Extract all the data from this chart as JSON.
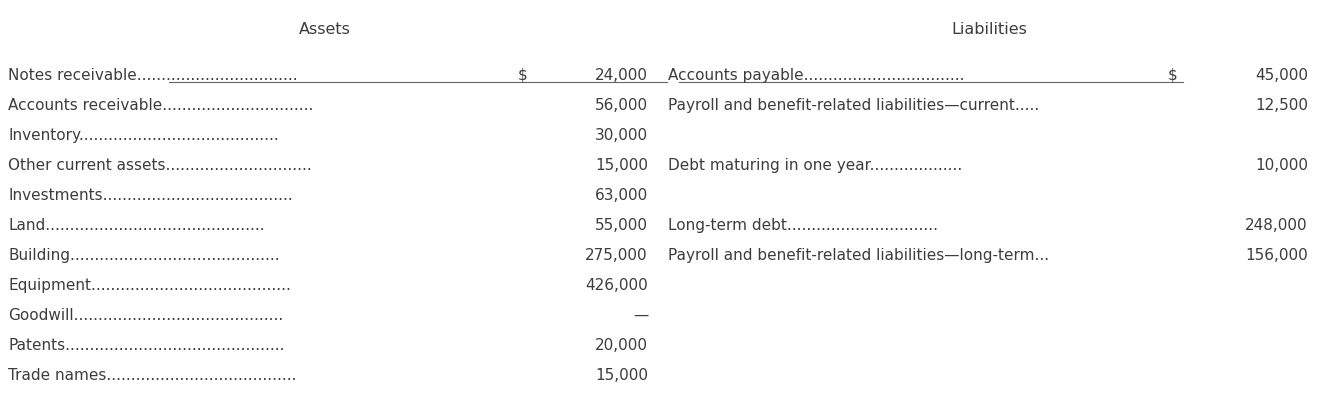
{
  "bg_color": "#ffffff",
  "text_color": "#3d3d3d",
  "assets_header": "Assets",
  "liabilities_header": "Liabilities",
  "assets_rows": [
    {
      "label": "Notes receivable",
      "dots": ".................................",
      "value": "24,000",
      "dollar": true
    },
    {
      "label": "Accounts receivable",
      "dots": "...............................",
      "value": "56,000",
      "dollar": false
    },
    {
      "label": "Inventory",
      "dots": ".........................................",
      "value": "30,000",
      "dollar": false
    },
    {
      "label": "Other current assets",
      "dots": "..............................",
      "value": "15,000",
      "dollar": false
    },
    {
      "label": "Investments",
      "dots": ".......................................",
      "value": "63,000",
      "dollar": false
    },
    {
      "label": "Land",
      "dots": ".............................................",
      "value": "55,000",
      "dollar": false
    },
    {
      "label": "Building",
      "dots": "...........................................",
      "value": "275,000",
      "dollar": false
    },
    {
      "label": "Equipment",
      "dots": ".........................................",
      "value": "426,000",
      "dollar": false
    },
    {
      "label": "Goodwill",
      "dots": "...........................................",
      "value": "—",
      "dollar": false
    },
    {
      "label": "Patents",
      "dots": ".............................................",
      "value": "20,000",
      "dollar": false
    },
    {
      "label": "Trade names",
      "dots": ".......................................",
      "value": "15,000",
      "dollar": false
    }
  ],
  "liabilities_rows": [
    {
      "label": "Accounts payable",
      "dots": ".................................",
      "value": "45,000",
      "dollar": true,
      "row": 0
    },
    {
      "label": "Payroll and benefit-related liabilities—current",
      "dots": ".....",
      "value": "12,500",
      "dollar": false,
      "row": 1
    },
    {
      "label": "Debt maturing in one year",
      "dots": "...................",
      "value": "10,000",
      "dollar": false,
      "row": 3
    },
    {
      "label": "Long-term debt",
      "dots": "...............................",
      "value": "248,000",
      "dollar": false,
      "row": 5
    },
    {
      "label": "Payroll and benefit-related liabilities—long-term",
      "dots": "...",
      "value": "156,000",
      "dollar": false,
      "row": 6
    }
  ],
  "font_size": 11.0,
  "header_font_size": 11.5,
  "line_color": "#666666",
  "figwidth": 13.19,
  "figheight": 4.11,
  "dpi": 100
}
